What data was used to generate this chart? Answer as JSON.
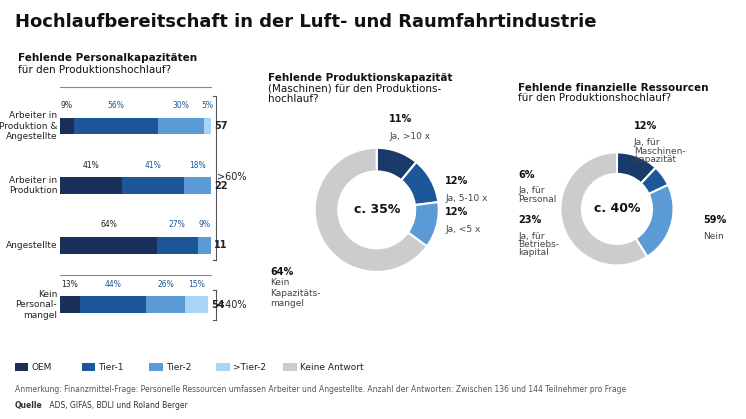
{
  "title": "Hochlaufbereitschaft in der Luft- und Raumfahrtindustrie",
  "bg_color": "#ffffff",
  "colors": {
    "OEM": "#1a2f5a",
    "Tier1": "#1e5799",
    "Tier2": "#5b9bd5",
    "gTier2": "#a8d4f5",
    "Keine": "#cccccc"
  },
  "bar_section": {
    "title1": "Fehlende Personalkapazitäten",
    "title2": "für den Produktionshochlauf?",
    "rows": [
      {
        "label": "Arbeiter in\nProduktion &\nAngestellte",
        "values": [
          9,
          56,
          30,
          5
        ],
        "n": 57
      },
      {
        "label": "Arbeiter in\nProduktion",
        "values": [
          41,
          41,
          18,
          0
        ],
        "n": 22
      },
      {
        "label": "Angestellte",
        "values": [
          64,
          27,
          9,
          0
        ],
        "n": 11
      },
      {
        "label": "Kein\nPersonal-\nmangel",
        "values": [
          13,
          44,
          26,
          15
        ],
        "n": 54
      }
    ]
  },
  "donut1": {
    "title_bold": "Fehlende Produktionskapazität",
    "title_normal1": "(Maschinen) für den Produktions-",
    "title_normal2": "hochlauf?",
    "center_label": "c. 35%",
    "slices": [
      11,
      12,
      12,
      65
    ],
    "slice_colors": [
      "#1a3a6b",
      "#1e5799",
      "#5b9bd5",
      "#cccccc"
    ]
  },
  "donut2": {
    "title_bold": "Fehlende finanzielle Ressourcen",
    "title_normal": "für den Produktionshochlauf?",
    "center_label": "c. 40%",
    "slices": [
      12,
      6,
      23,
      59
    ],
    "slice_colors": [
      "#1a3a6b",
      "#1e5799",
      "#5b9bd5",
      "#cccccc"
    ]
  },
  "legend_items": [
    [
      "#1a2f5a",
      "OEM"
    ],
    [
      "#1e5799",
      "Tier-1"
    ],
    [
      "#5b9bd5",
      "Tier-2"
    ],
    [
      "#a8d4f5",
      ">Tier-2"
    ],
    [
      "#cccccc",
      "Keine Antwort"
    ]
  ],
  "footnote": "Anmerkung: Finanzmittel-Frage: Personelle Ressourcen umfassen Arbeiter und Angestellte. Anzahl der Antworten: Zwischen 136 und 144 Teilnehmer pro Frage",
  "source_bold": "Quelle",
  "source_normal": " ADS, GIFAS, BDLI und Roland Berger"
}
